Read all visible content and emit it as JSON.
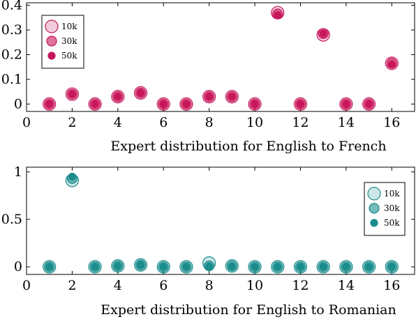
{
  "chart_data": [
    {
      "type": "scatter",
      "xlabel": "Expert distribution for English to French",
      "ylabel": "",
      "xlim": [
        0,
        17
      ],
      "ylim": [
        -0.03,
        0.41
      ],
      "xticks": [
        0,
        2,
        4,
        6,
        8,
        10,
        12,
        14,
        16
      ],
      "yticks": [
        0,
        0.1,
        0.2,
        0.3,
        0.4
      ],
      "ytick_labels": [
        "0",
        "0.1",
        "0.2",
        "0.3",
        "0.4"
      ],
      "legend_position": "top-left",
      "color": "#c8175a",
      "fill_color": "#e8a0bc",
      "series": [
        {
          "name": "10k",
          "x": [
            1,
            2,
            3,
            4,
            5,
            6,
            7,
            8,
            9,
            10,
            11,
            12,
            13,
            14,
            15,
            16
          ],
          "y": [
            0,
            0.04,
            0,
            0.03,
            0.045,
            0,
            0,
            0.03,
            0.03,
            0,
            0.37,
            0,
            0.28,
            0,
            0,
            0.165
          ]
        },
        {
          "name": "30k",
          "x": [
            1,
            2,
            3,
            4,
            5,
            6,
            7,
            8,
            9,
            10,
            11,
            12,
            13,
            14,
            15,
            16
          ],
          "y": [
            0,
            0.04,
            0,
            0.03,
            0.045,
            0,
            0,
            0.03,
            0.03,
            0,
            0.365,
            0,
            0.285,
            0,
            0,
            0.165
          ]
        },
        {
          "name": "50k",
          "x": [
            1,
            2,
            3,
            4,
            5,
            6,
            7,
            8,
            9,
            10,
            11,
            12,
            13,
            14,
            15,
            16
          ],
          "y": [
            0,
            0.04,
            0,
            0.03,
            0.045,
            0,
            0,
            0.03,
            0.03,
            0,
            0.36,
            0,
            0.285,
            0,
            0,
            0.16
          ]
        }
      ]
    },
    {
      "type": "scatter",
      "xlabel": "Expert distribution for English to Romanian",
      "ylabel": "",
      "xlim": [
        0,
        17
      ],
      "ylim": [
        -0.08,
        1.05
      ],
      "xticks": [
        0,
        2,
        4,
        6,
        8,
        10,
        12,
        14,
        16
      ],
      "yticks": [
        0,
        0.5,
        1
      ],
      "ytick_labels": [
        "0",
        "0.5",
        "1"
      ],
      "legend_position": "top-right",
      "color": "#1a8c8c",
      "fill_color": "#a9d9d6",
      "series": [
        {
          "name": "10k",
          "x": [
            1,
            2,
            3,
            4,
            5,
            6,
            7,
            8,
            9,
            10,
            11,
            12,
            13,
            14,
            15,
            16
          ],
          "y": [
            0,
            0.91,
            0,
            0.01,
            0.02,
            0,
            0,
            0.04,
            0.01,
            0,
            0,
            0,
            0,
            0,
            0,
            0
          ]
        },
        {
          "name": "30k",
          "x": [
            1,
            2,
            3,
            4,
            5,
            6,
            7,
            8,
            9,
            10,
            11,
            12,
            13,
            14,
            15,
            16
          ],
          "y": [
            0,
            0.93,
            0,
            0.01,
            0.02,
            0,
            0,
            0.01,
            0.01,
            0,
            0,
            0,
            0,
            0,
            0,
            0
          ]
        },
        {
          "name": "50k",
          "x": [
            1,
            2,
            3,
            4,
            5,
            6,
            7,
            8,
            9,
            10,
            11,
            12,
            13,
            14,
            15,
            16
          ],
          "y": [
            0,
            0.95,
            0,
            0.01,
            0.02,
            0,
            0,
            0.005,
            0.005,
            0,
            0,
            0,
            0,
            0,
            0,
            0
          ]
        }
      ]
    }
  ]
}
